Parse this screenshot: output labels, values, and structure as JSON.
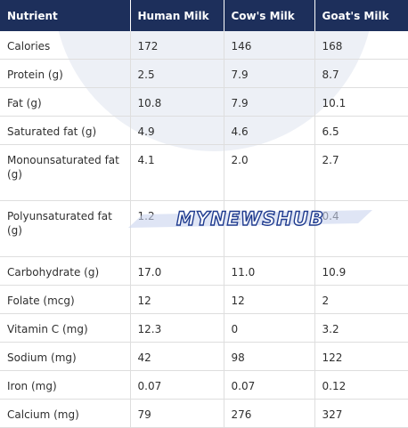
{
  "table": {
    "headers": [
      "Nutrient",
      "Human Milk",
      "Cow's Milk",
      "Goat's Milk"
    ],
    "rows": [
      [
        "Calories",
        "172",
        "146",
        "168"
      ],
      [
        "Protein (g)",
        "2.5",
        "7.9",
        "8.7"
      ],
      [
        "Fat (g)",
        "10.8",
        "7.9",
        "10.1"
      ],
      [
        "Saturated fat (g)",
        "4.9",
        "4.6",
        "6.5"
      ],
      [
        "Monounsaturated fat (g)",
        "4.1",
        "2.0",
        "2.7"
      ],
      [
        "Polyunsaturated fat (g)",
        "1.2",
        "0.5",
        "0.4"
      ],
      [
        "Carbohydrate (g)",
        "17.0",
        "11.0",
        "10.9"
      ],
      [
        "Folate (mcg)",
        "12",
        "12",
        "2"
      ],
      [
        "Vitamin C (mg)",
        "12.3",
        "0",
        "3.2"
      ],
      [
        "Sodium (mg)",
        "42",
        "98",
        "122"
      ],
      [
        "Iron (mg)",
        "0.07",
        "0.07",
        "0.12"
      ],
      [
        "Calcium (mg)",
        "79",
        "276",
        "327"
      ]
    ]
  },
  "watermark": {
    "text": "MYNEWSHUB",
    "color": "#1f3b8f"
  },
  "colors": {
    "header_bg": "#1d2f5b",
    "header_text": "#ffffff",
    "border": "#dedede",
    "background_mark": "#edf0f6"
  }
}
